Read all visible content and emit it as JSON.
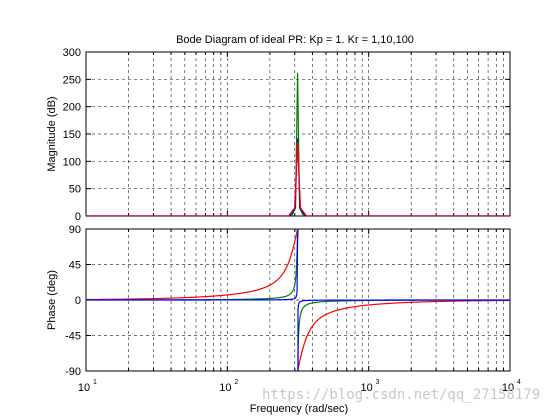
{
  "chart_data": {
    "type": "line",
    "title": "Bode Diagram of ideal PR: Kp = 1. Kr = 1,10,100",
    "xlabel": "Frequency  (rad/sec)",
    "xscale": "log",
    "xlim": [
      10,
      10000
    ],
    "x_ticks": [
      {
        "base": "10",
        "exp": "1"
      },
      {
        "base": "10",
        "exp": "2"
      },
      {
        "base": "10",
        "exp": "3"
      },
      {
        "base": "10",
        "exp": "4"
      }
    ],
    "resonance_frequency": 314,
    "panels": [
      {
        "name": "magnitude",
        "ylabel": "Magnitude (dB)",
        "ylim": [
          0,
          300
        ],
        "yticks": [
          "0",
          "50",
          "100",
          "150",
          "200",
          "250",
          "300"
        ],
        "series": [
          {
            "color": "#008000",
            "baseline": 0,
            "peak": 262
          },
          {
            "color": "#0000ff",
            "baseline": 0,
            "peak": 142
          },
          {
            "color": "#ff0000",
            "baseline": 0,
            "peak": 135
          }
        ]
      },
      {
        "name": "phase",
        "ylabel": "Phase (deg)",
        "ylim": [
          -90,
          90
        ],
        "yticks": [
          "-90",
          "-45",
          "0",
          "45",
          "90"
        ],
        "series": [
          {
            "color": "#ff0000",
            "kr": 100
          },
          {
            "color": "#008000",
            "kr": 10
          },
          {
            "color": "#0000ff",
            "kr": 1
          }
        ]
      }
    ],
    "grid": true
  },
  "watermark": "https://blog.csdn.net/qq_27158179"
}
